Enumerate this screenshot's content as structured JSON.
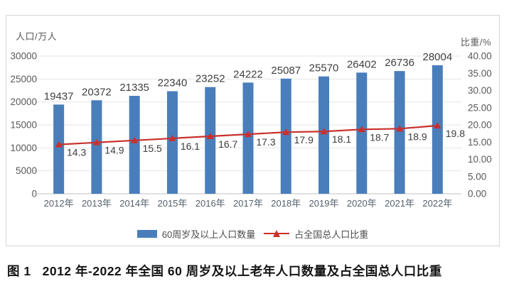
{
  "chart_data": {
    "type": "combo",
    "categories": [
      "2012年",
      "2013年",
      "2014年",
      "2015年",
      "2016年",
      "2017年",
      "2018年",
      "2019年",
      "2020年",
      "2021年",
      "2022年"
    ],
    "series": [
      {
        "name": "60周岁及以上人口数量",
        "type": "bar",
        "axis": "left",
        "color": "#4a7ebb",
        "values": [
          19437,
          20372,
          21335,
          22340,
          23252,
          24222,
          25087,
          25570,
          26402,
          26736,
          28004
        ]
      },
      {
        "name": "占全国总人口比重",
        "type": "line",
        "axis": "right",
        "color": "#c9302c",
        "values": [
          14.3,
          14.9,
          15.5,
          16.1,
          16.7,
          17.3,
          17.9,
          18.1,
          18.7,
          18.9,
          19.8
        ]
      }
    ],
    "left_axis": {
      "title": "人口/万人",
      "min": 0,
      "max": 30000,
      "step": 5000,
      "tick_labels": [
        "0",
        "5000",
        "10000",
        "15000",
        "20000",
        "25000",
        "30000"
      ]
    },
    "right_axis": {
      "title": "比重/%",
      "min": 0,
      "max": 40,
      "step": 5,
      "tick_labels": [
        "0.00",
        "5.00",
        "10.00",
        "15.00",
        "20.00",
        "25.00",
        "30.00",
        "35.00",
        "40.00"
      ]
    },
    "grid": true,
    "data_labels": true,
    "legend_position": "bottom"
  },
  "caption": {
    "figure_label": "图 1",
    "text": "2012 年-2022 年全国 60 周岁及以上老年人口数量及占全国总人口比重"
  }
}
